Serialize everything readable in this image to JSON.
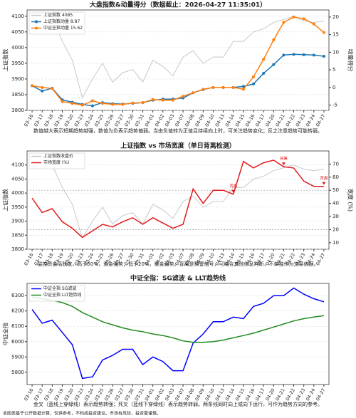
{
  "chart_data": [
    {
      "type": "line",
      "title": "大盘指数&动量得分（数据截止：2026-04-27 11:35:01）",
      "caption": "数值越大表示短期趋势越强，数值为负表示趋势偏弱。当由负值转为正值且持续向上时，可关注趋势变化；反之注意趋势可能转弱。",
      "ylabel": "上证指数",
      "y2label": "动量得分",
      "categories": [
        "03-16",
        "03-17",
        "03-18",
        "03-19",
        "03-20",
        "03-23",
        "03-24",
        "03-25",
        "03-26",
        "03-27",
        "03-30",
        "03-31",
        "04-01",
        "04-02",
        "04-03",
        "04-07",
        "04-08",
        "04-09",
        "04-10",
        "04-13",
        "04-14",
        "04-15",
        "04-16",
        "04-17",
        "04-20",
        "04-21",
        "04-22",
        "04-23",
        "04-24",
        "04-27"
      ],
      "ylim": [
        3800,
        4120
      ],
      "yticks": [
        3800,
        3850,
        3900,
        3950,
        4000,
        4050,
        4100
      ],
      "y2lim": [
        -6.5,
        22
      ],
      "y2ticks": [
        -5,
        0,
        5,
        10,
        15,
        20
      ],
      "grid": true,
      "series": [
        {
          "name": "上证指数 4085",
          "color": "#c8c8c8",
          "axis": "y",
          "marker": false,
          "values": [
            4110,
            4110,
            4100,
            4020,
            3960,
            3840,
            3900,
            3950,
            3890,
            3920,
            3930,
            3890,
            3960,
            3940,
            3910,
            3970,
            3990,
            3950,
            3970,
            3970,
            4020,
            4020,
            4050,
            4060,
            4080,
            4090,
            4100,
            4085,
            4080,
            4085
          ]
        },
        {
          "name": "上证指数动量 8.87",
          "color": "#1f77b4",
          "axis": "y2",
          "marker": true,
          "values": [
            0.5,
            -1,
            -0.2,
            -3.5,
            -4.2,
            -4.8,
            -5.2,
            -4.3,
            -4.6,
            -4.7,
            -4.5,
            -4.3,
            -3.6,
            -3.3,
            -3.3,
            -3,
            -1.5,
            -0.6,
            0,
            0,
            0,
            0.3,
            1,
            4,
            6.5,
            9.2,
            9.4,
            9.3,
            9.2,
            8.87
          ]
        },
        {
          "name": "中证全指动量 15.62",
          "color": "#ff7f0e",
          "axis": "y2",
          "marker": true,
          "values": [
            0.5,
            0,
            -0.3,
            -4,
            -4.5,
            -5,
            -3.8,
            -4.5,
            -4.8,
            -4.8,
            -4.4,
            -4.3,
            -3.4,
            -3.6,
            -3.6,
            -2.5,
            -1.5,
            -0.5,
            0,
            0,
            0,
            -0.5,
            3,
            8,
            13.5,
            18.5,
            20,
            19.5,
            18,
            15.62
          ]
        }
      ]
    },
    {
      "type": "line",
      "title": "上证指数 vs 市场宽度（单日背离检测）",
      "caption": "监控资金活跃度，高于50%，资金强势；低于20%，资金弱势。背离是预警信号，可结合其他信息判断，不单独作为交易依据。",
      "ylabel": "上证指数",
      "y2label": "宽度 (%)",
      "categories": [
        "03-16",
        "03-17",
        "03-18",
        "03-19",
        "03-20",
        "03-23",
        "03-24",
        "03-25",
        "03-26",
        "03-27",
        "03-30",
        "03-31",
        "04-01",
        "04-02",
        "04-03",
        "04-07",
        "04-08",
        "04-09",
        "04-10",
        "04-13",
        "04-14",
        "04-15",
        "04-16",
        "04-17",
        "04-20",
        "04-21",
        "04-22",
        "04-23",
        "04-24",
        "04-27"
      ],
      "ylim": [
        3800,
        4150
      ],
      "yticks": [
        3800,
        3850,
        3900,
        3950,
        4000,
        4050,
        4100
      ],
      "y2lim": [
        5,
        80
      ],
      "y2ticks": [
        10,
        20,
        30,
        40,
        50,
        60,
        70
      ],
      "grid": true,
      "reference_lines": [
        {
          "value": 50,
          "axis": "y2"
        },
        {
          "value": 20,
          "axis": "y2"
        }
      ],
      "series": [
        {
          "name": "上证指数收盘价",
          "color": "#c8c8c8",
          "axis": "y",
          "marker": false,
          "values": [
            4110,
            4110,
            4100,
            4020,
            3960,
            3840,
            3900,
            3950,
            3890,
            3920,
            3930,
            3890,
            3960,
            3940,
            3910,
            3970,
            3990,
            3950,
            3970,
            3970,
            4020,
            4020,
            4050,
            4060,
            4080,
            4090,
            4100,
            4085,
            4080,
            4085
          ]
        },
        {
          "name": "市场宽度 (%)",
          "color": "#e31a1c",
          "axis": "y2",
          "marker": false,
          "values": [
            44,
            33,
            36,
            26,
            21,
            14,
            19,
            24,
            22,
            26,
            29,
            24,
            29,
            25,
            21,
            24,
            51,
            40,
            50,
            50,
            47,
            72,
            67,
            71,
            73,
            68,
            67,
            57,
            53,
            53
          ]
        }
      ],
      "annotations": [
        {
          "x": "04-14",
          "text": "背离"
        },
        {
          "x": "04-21",
          "text": "背离"
        },
        {
          "x": "04-27",
          "text": "背离"
        }
      ]
    },
    {
      "type": "line",
      "title": "中证全指：SG滤波 & LLT趋势线",
      "caption": "金叉（蓝线上穿绿线）表示趋势转强；死叉（蓝线下穿绿线）表示趋势转弱。两条线同时向上或向下运行，可作为趋势方向的参考。",
      "ylabel": "中证全指",
      "categories": [
        "03-16",
        "03-17",
        "03-18",
        "03-19",
        "03-20",
        "03-23",
        "03-24",
        "03-25",
        "03-26",
        "03-27",
        "03-30",
        "03-31",
        "04-01",
        "04-02",
        "04-03",
        "04-07",
        "04-08",
        "04-09",
        "04-10",
        "04-13",
        "04-14",
        "04-15",
        "04-16",
        "04-17",
        "04-20",
        "04-21",
        "04-22",
        "04-23",
        "04-24",
        "04-27"
      ],
      "ylim": [
        5720,
        6380
      ],
      "yticks": [
        5800,
        5900,
        6000,
        6100,
        6200,
        6300
      ],
      "grid": true,
      "series": [
        {
          "name": "中证全指 SG滤波",
          "color": "#0000ff",
          "axis": "y",
          "marker": false,
          "values": [
            6210,
            6120,
            6140,
            6060,
            5980,
            5760,
            5770,
            5880,
            5910,
            5950,
            5950,
            5850,
            5900,
            5870,
            5810,
            5810,
            5990,
            6050,
            6130,
            6130,
            6160,
            6150,
            6230,
            6250,
            6300,
            6300,
            6350,
            6310,
            6280,
            6260
          ]
        },
        {
          "name": "中证全指 LLT趋势线",
          "color": "#228b22",
          "axis": "y",
          "marker": false,
          "values": [
            6290,
            6280,
            6270,
            6255,
            6230,
            6190,
            6160,
            6130,
            6110,
            6090,
            6075,
            6065,
            6050,
            6040,
            6025,
            6005,
            5995,
            5995,
            6000,
            6010,
            6025,
            6040,
            6055,
            6075,
            6095,
            6115,
            6135,
            6150,
            6160,
            6170
          ]
        }
      ]
    }
  ],
  "footer": "本图表基于公开数据计算，仅供参考，不构成投资建议。市场有风险，投资需谨慎。"
}
